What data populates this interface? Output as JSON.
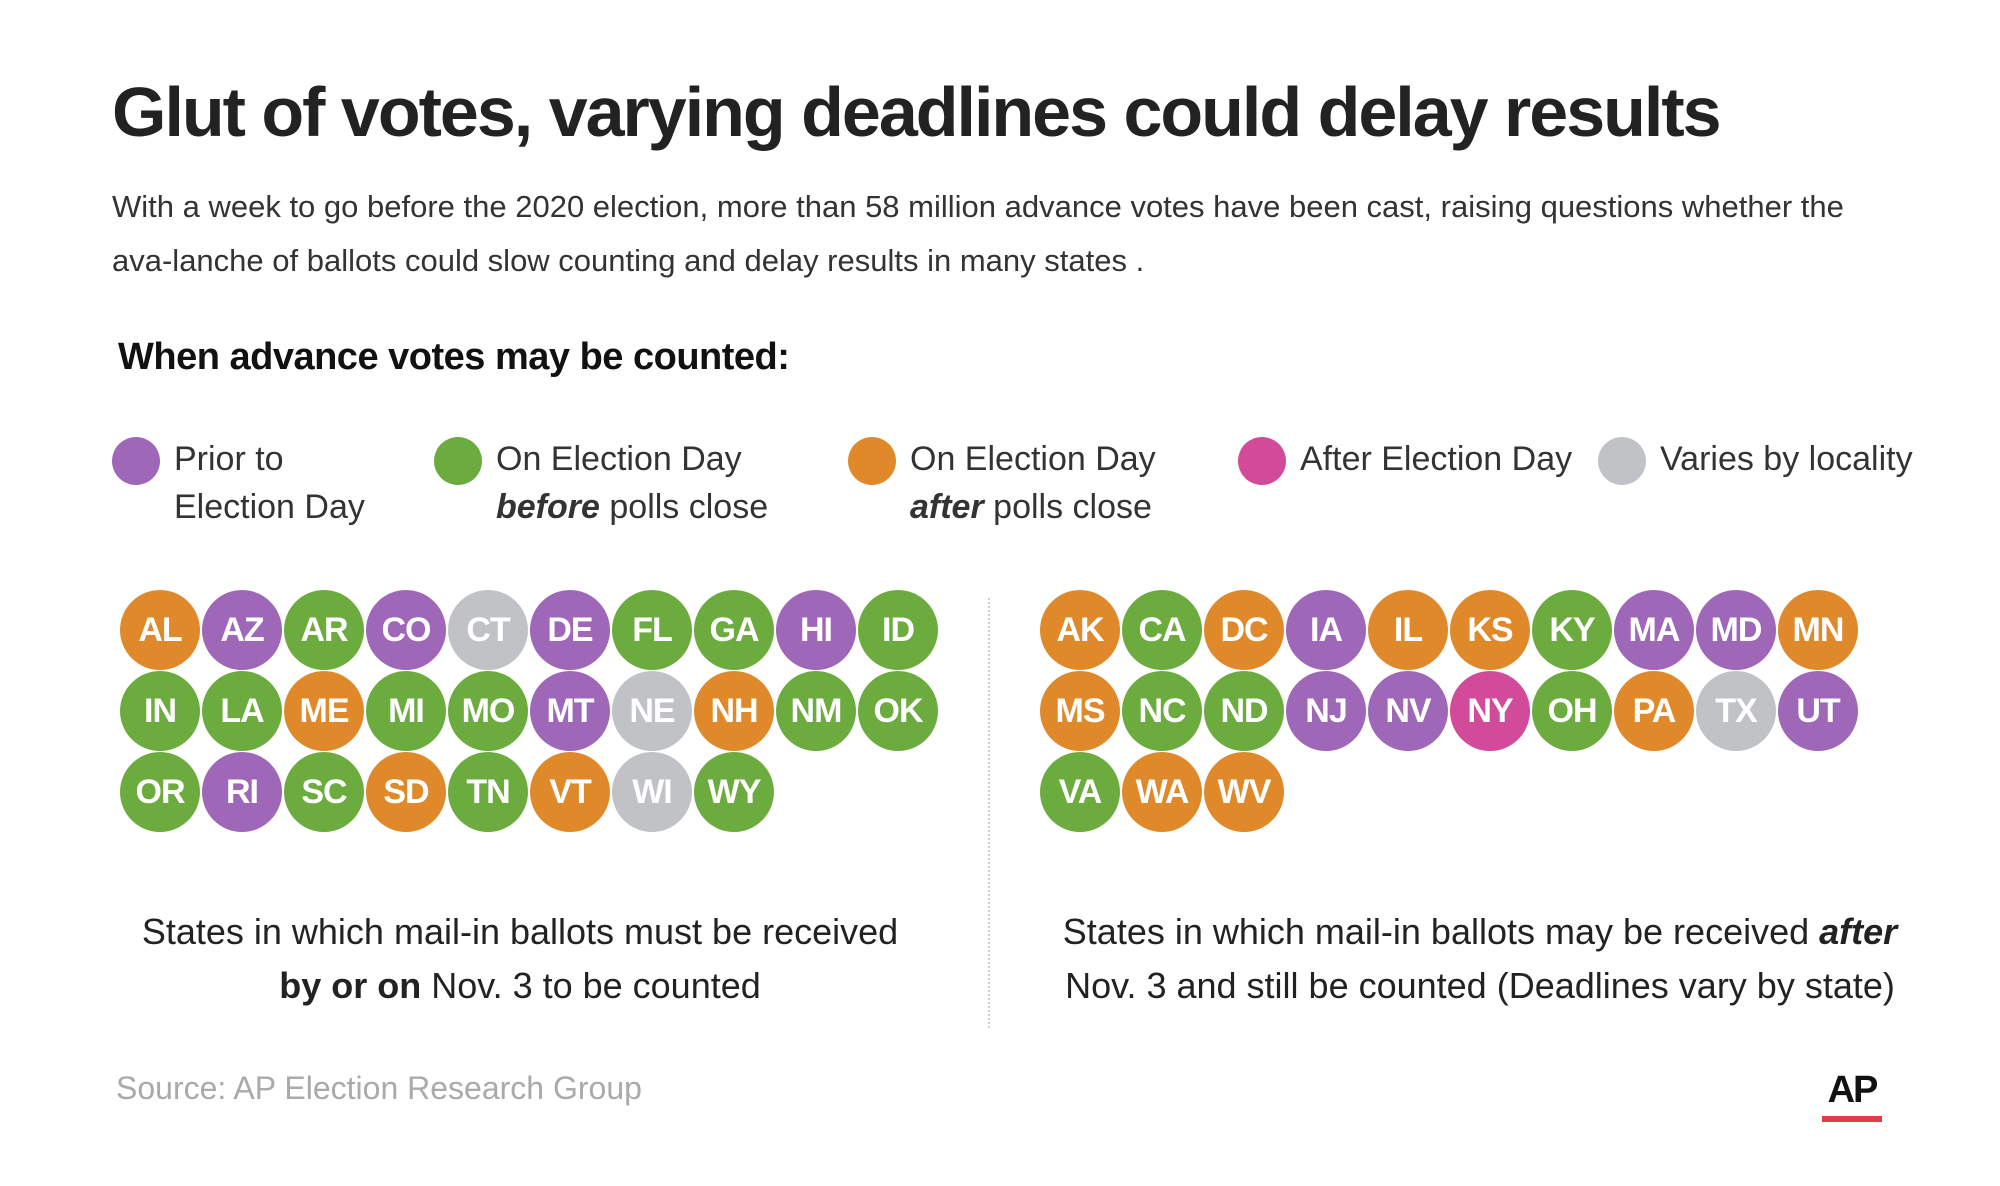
{
  "title": "Glut of votes, varying deadlines could delay results",
  "subtitle": "With a week to go before the 2020 election, more than 58 million advance votes have been cast, raising questions whether the ava-lanche of ballots could slow counting and delay results in many states .",
  "section_heading": "When advance votes may be counted:",
  "colors": {
    "prior": "#9f67b8",
    "before": "#6cab3e",
    "after": "#e0892a",
    "after_day": "#d24a9a",
    "varies": "#c1c2c6",
    "ap_red": "#e03c4a"
  },
  "legend": [
    {
      "key": "prior",
      "text": "Prior to Election Day"
    },
    {
      "key": "before",
      "text_a": "On Election Day",
      "text_em": "before",
      "text_b": "polls close"
    },
    {
      "key": "after",
      "text_a": "On Election Day",
      "text_em": "after",
      "text_b": "polls close"
    },
    {
      "key": "after_day",
      "text": "After Election Day"
    },
    {
      "key": "varies",
      "text": "Varies by locality"
    }
  ],
  "left_group": {
    "states": [
      {
        "abbr": "AL",
        "cat": "after"
      },
      {
        "abbr": "AZ",
        "cat": "prior"
      },
      {
        "abbr": "AR",
        "cat": "before"
      },
      {
        "abbr": "CO",
        "cat": "prior"
      },
      {
        "abbr": "CT",
        "cat": "varies"
      },
      {
        "abbr": "DE",
        "cat": "prior"
      },
      {
        "abbr": "FL",
        "cat": "before"
      },
      {
        "abbr": "GA",
        "cat": "before"
      },
      {
        "abbr": "HI",
        "cat": "prior"
      },
      {
        "abbr": "ID",
        "cat": "before"
      },
      {
        "abbr": "IN",
        "cat": "before"
      },
      {
        "abbr": "LA",
        "cat": "before"
      },
      {
        "abbr": "ME",
        "cat": "after"
      },
      {
        "abbr": "MI",
        "cat": "before"
      },
      {
        "abbr": "MO",
        "cat": "before"
      },
      {
        "abbr": "MT",
        "cat": "prior"
      },
      {
        "abbr": "NE",
        "cat": "varies"
      },
      {
        "abbr": "NH",
        "cat": "after"
      },
      {
        "abbr": "NM",
        "cat": "before"
      },
      {
        "abbr": "OK",
        "cat": "before"
      },
      {
        "abbr": "OR",
        "cat": "before"
      },
      {
        "abbr": "RI",
        "cat": "prior"
      },
      {
        "abbr": "SC",
        "cat": "before"
      },
      {
        "abbr": "SD",
        "cat": "after"
      },
      {
        "abbr": "TN",
        "cat": "before"
      },
      {
        "abbr": "VT",
        "cat": "after"
      },
      {
        "abbr": "WI",
        "cat": "varies"
      },
      {
        "abbr": "WY",
        "cat": "before"
      }
    ],
    "caption_a": "States in which mail-in ballots must be received",
    "caption_b": "by or on",
    "caption_c": "Nov. 3 to be counted"
  },
  "right_group": {
    "states": [
      {
        "abbr": "AK",
        "cat": "after"
      },
      {
        "abbr": "CA",
        "cat": "before"
      },
      {
        "abbr": "DC",
        "cat": "after"
      },
      {
        "abbr": "IA",
        "cat": "prior"
      },
      {
        "abbr": "IL",
        "cat": "after"
      },
      {
        "abbr": "KS",
        "cat": "after"
      },
      {
        "abbr": "KY",
        "cat": "before"
      },
      {
        "abbr": "MA",
        "cat": "prior"
      },
      {
        "abbr": "MD",
        "cat": "prior"
      },
      {
        "abbr": "MN",
        "cat": "after"
      },
      {
        "abbr": "MS",
        "cat": "after"
      },
      {
        "abbr": "NC",
        "cat": "before"
      },
      {
        "abbr": "ND",
        "cat": "before"
      },
      {
        "abbr": "NJ",
        "cat": "prior"
      },
      {
        "abbr": "NV",
        "cat": "prior"
      },
      {
        "abbr": "NY",
        "cat": "after_day"
      },
      {
        "abbr": "OH",
        "cat": "before"
      },
      {
        "abbr": "PA",
        "cat": "after"
      },
      {
        "abbr": "TX",
        "cat": "varies"
      },
      {
        "abbr": "UT",
        "cat": "prior"
      },
      {
        "abbr": "VA",
        "cat": "before"
      },
      {
        "abbr": "WA",
        "cat": "after"
      },
      {
        "abbr": "WV",
        "cat": "after"
      }
    ],
    "caption_a": "States in which mail-in ballots may be received",
    "caption_b": "after",
    "caption_c": "Nov. 3 and still be counted (Deadlines vary by state)"
  },
  "source": "Source: AP Election Research Group",
  "logo_text": "AP"
}
